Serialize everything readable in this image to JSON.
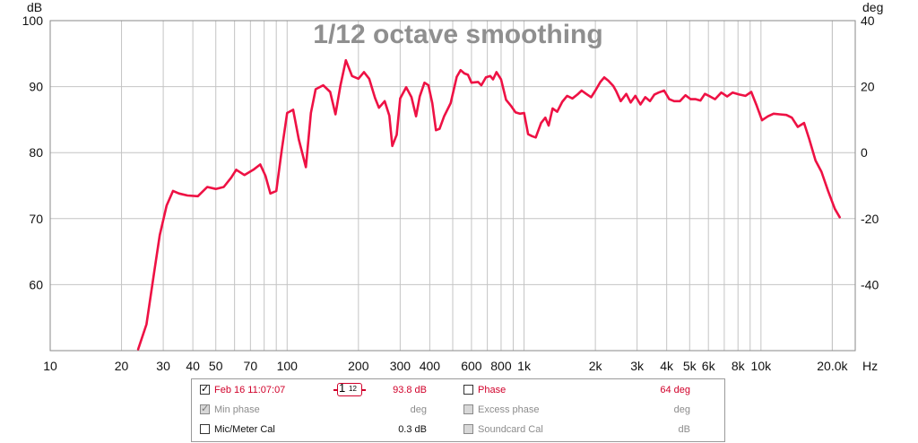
{
  "chart_data": {
    "type": "line",
    "title": "1/12 octave smoothing",
    "y_left_unit": "dB",
    "y_right_unit": "deg",
    "x_unit": "Hz",
    "x_scale": "log",
    "xlim": [
      10,
      25000
    ],
    "ylim": [
      50,
      100
    ],
    "y_right_lim": [
      -60,
      40
    ],
    "y_ticks": [
      100,
      90,
      80,
      70,
      60
    ],
    "y_right_ticks": [
      40,
      20,
      0,
      -20,
      -40
    ],
    "x_tick_labels": [
      "10",
      "20",
      "30",
      "40",
      "50",
      "70",
      "100",
      "200",
      "300",
      "400",
      "600",
      "800",
      "1k",
      "2k",
      "3k",
      "4k",
      "5k",
      "6k",
      "8k",
      "10k",
      "20.0k"
    ],
    "x_tick_values": [
      10,
      20,
      30,
      40,
      50,
      70,
      100,
      200,
      300,
      400,
      600,
      800,
      1000,
      2000,
      3000,
      4000,
      5000,
      6000,
      8000,
      10000,
      20000
    ],
    "grid": true,
    "series": [
      {
        "name": "Feb 16 11:07:07",
        "color": "#ee1144",
        "points": [
          [
            23.5,
            50.2
          ],
          [
            25.5,
            54
          ],
          [
            27.5,
            62
          ],
          [
            29,
            67.5
          ],
          [
            31,
            72
          ],
          [
            33,
            74.2
          ],
          [
            35,
            73.8
          ],
          [
            38,
            73.5
          ],
          [
            42,
            73.4
          ],
          [
            46,
            74.8
          ],
          [
            50,
            74.5
          ],
          [
            54,
            74.8
          ],
          [
            58,
            76.2
          ],
          [
            61,
            77.4
          ],
          [
            66,
            76.6
          ],
          [
            72,
            77.4
          ],
          [
            77,
            78.2
          ],
          [
            81,
            76.5
          ],
          [
            85,
            73.8
          ],
          [
            90,
            74.2
          ],
          [
            95,
            80.5
          ],
          [
            100,
            86
          ],
          [
            106,
            86.5
          ],
          [
            112,
            82
          ],
          [
            120,
            77.8
          ],
          [
            126,
            86
          ],
          [
            132,
            89.6
          ],
          [
            142,
            90.2
          ],
          [
            152,
            89.2
          ],
          [
            160,
            85.8
          ],
          [
            168,
            90.2
          ],
          [
            177,
            94
          ],
          [
            188,
            91.6
          ],
          [
            200,
            91.2
          ],
          [
            211,
            92.2
          ],
          [
            222,
            91.2
          ],
          [
            235,
            88.3
          ],
          [
            244,
            86.8
          ],
          [
            258,
            87.8
          ],
          [
            270,
            85.6
          ],
          [
            278,
            81
          ],
          [
            290,
            82.7
          ],
          [
            300,
            88.2
          ],
          [
            318,
            89.9
          ],
          [
            335,
            88.4
          ],
          [
            350,
            85.5
          ],
          [
            363,
            88.5
          ],
          [
            380,
            90.6
          ],
          [
            395,
            90.2
          ],
          [
            410,
            87.5
          ],
          [
            425,
            83.4
          ],
          [
            440,
            83.6
          ],
          [
            460,
            85.5
          ],
          [
            490,
            87.5
          ],
          [
            520,
            91.5
          ],
          [
            540,
            92.5
          ],
          [
            560,
            92
          ],
          [
            580,
            91.8
          ],
          [
            600,
            90.6
          ],
          [
            640,
            90.7
          ],
          [
            660,
            90.2
          ],
          [
            690,
            91.4
          ],
          [
            720,
            91.6
          ],
          [
            740,
            91.1
          ],
          [
            765,
            92.2
          ],
          [
            800,
            91.1
          ],
          [
            840,
            88
          ],
          [
            880,
            87.1
          ],
          [
            920,
            86.1
          ],
          [
            960,
            85.9
          ],
          [
            1000,
            86
          ],
          [
            1040,
            82.8
          ],
          [
            1080,
            82.5
          ],
          [
            1120,
            82.3
          ],
          [
            1180,
            84.5
          ],
          [
            1230,
            85.3
          ],
          [
            1270,
            84.1
          ],
          [
            1320,
            86.7
          ],
          [
            1380,
            86.2
          ],
          [
            1450,
            87.7
          ],
          [
            1520,
            88.6
          ],
          [
            1600,
            88.2
          ],
          [
            1680,
            88.8
          ],
          [
            1750,
            89.4
          ],
          [
            1830,
            88.9
          ],
          [
            1920,
            88.4
          ],
          [
            2000,
            89.4
          ],
          [
            2100,
            90.7
          ],
          [
            2180,
            91.4
          ],
          [
            2270,
            90.9
          ],
          [
            2380,
            90.1
          ],
          [
            2450,
            89.3
          ],
          [
            2560,
            87.8
          ],
          [
            2700,
            88.9
          ],
          [
            2820,
            87.6
          ],
          [
            2950,
            88.6
          ],
          [
            3100,
            87.3
          ],
          [
            3250,
            88.4
          ],
          [
            3400,
            87.8
          ],
          [
            3550,
            88.8
          ],
          [
            3700,
            89.1
          ],
          [
            3900,
            89.4
          ],
          [
            4100,
            88.1
          ],
          [
            4300,
            87.8
          ],
          [
            4550,
            87.8
          ],
          [
            4800,
            88.7
          ],
          [
            5050,
            88.1
          ],
          [
            5300,
            88.1
          ],
          [
            5550,
            87.9
          ],
          [
            5800,
            88.9
          ],
          [
            6100,
            88.5
          ],
          [
            6400,
            88.1
          ],
          [
            6800,
            89.1
          ],
          [
            7200,
            88.5
          ],
          [
            7600,
            89.1
          ],
          [
            8100,
            88.8
          ],
          [
            8600,
            88.6
          ],
          [
            9100,
            89.2
          ],
          [
            9600,
            87.1
          ],
          [
            10100,
            84.9
          ],
          [
            10700,
            85.5
          ],
          [
            11300,
            85.9
          ],
          [
            12000,
            85.8
          ],
          [
            12800,
            85.7
          ],
          [
            13500,
            85.3
          ],
          [
            14300,
            83.9
          ],
          [
            15200,
            84.5
          ],
          [
            16000,
            82
          ],
          [
            17000,
            78.8
          ],
          [
            18000,
            77.1
          ],
          [
            19200,
            74.2
          ],
          [
            20500,
            71.5
          ],
          [
            21500,
            70.2
          ]
        ]
      }
    ]
  },
  "legend": {
    "rows": [
      {
        "left_label": "Feb 16 11:07:07",
        "left_checked": true,
        "smoothing_top": "1",
        "smoothing_bottom": "12",
        "left_value": "93.8 dB",
        "right_label": "Phase",
        "right_checked": false,
        "right_value": "64 deg"
      },
      {
        "left_label": "Min phase",
        "left_checked": true,
        "left_value": "deg",
        "right_label": "Excess phase",
        "right_checked": false,
        "right_value": "deg"
      },
      {
        "left_label": "Mic/Meter Cal",
        "left_checked": false,
        "left_value": "0.3 dB",
        "right_label": "Soundcard Cal",
        "right_checked": false,
        "right_value": "dB"
      }
    ]
  }
}
